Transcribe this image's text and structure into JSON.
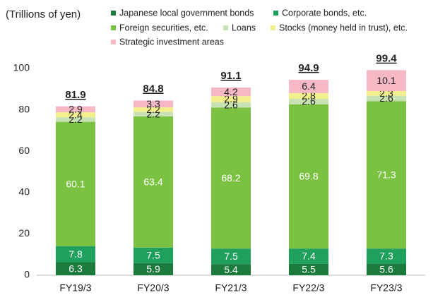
{
  "chart_data": {
    "type": "stacked_bar",
    "y_label": "(Trillions of yen)",
    "categories": [
      "FY19/3",
      "FY20/3",
      "FY21/3",
      "FY22/3",
      "FY23/3"
    ],
    "series": [
      {
        "name": "Japanese local government bonds",
        "color": "#1b7a3c",
        "values": [
          6.3,
          5.9,
          5.4,
          5.5,
          5.6
        ]
      },
      {
        "name": "Corporate bonds, etc.",
        "color": "#1fa05c",
        "values": [
          7.8,
          7.5,
          7.5,
          7.4,
          7.3
        ]
      },
      {
        "name": "Foreign securities, etc.",
        "color": "#7cc242",
        "values": [
          60.1,
          63.4,
          68.2,
          69.8,
          71.3
        ]
      },
      {
        "name": "Loans",
        "color": "#c9e2b3",
        "values": [
          2.2,
          2.2,
          2.6,
          2.6,
          2.6
        ]
      },
      {
        "name": "Stocks (money held in trust), etc.",
        "color": "#f3ef8c",
        "values": [
          2.4,
          2.2,
          2.9,
          2.8,
          2.3
        ]
      },
      {
        "name": "Strategic investment areas",
        "color": "#f5b8c4",
        "values": [
          2.9,
          3.3,
          4.2,
          6.4,
          10.1
        ]
      }
    ],
    "totals": [
      81.9,
      84.8,
      91.1,
      94.9,
      99.4
    ],
    "ylim": [
      0,
      100
    ],
    "yticks": [
      0,
      20,
      40,
      60,
      80,
      100
    ],
    "grid": false
  }
}
